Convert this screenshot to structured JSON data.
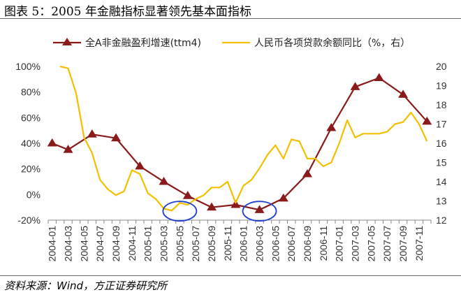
{
  "title": "图表 5：2005 年金融指标显著领先基本面指标",
  "source": "资料来源：Wind，方正证券研究所",
  "chart_data": {
    "type": "line",
    "categories": [
      "2004-01",
      "2004-02",
      "2004-03",
      "2004-04",
      "2004-05",
      "2004-06",
      "2004-07",
      "2004-08",
      "2004-09",
      "2004-10",
      "2004-11",
      "2004-12",
      "2005-01",
      "2005-02",
      "2005-03",
      "2005-04",
      "2005-05",
      "2005-06",
      "2005-07",
      "2005-08",
      "2005-09",
      "2005-10",
      "2005-11",
      "2005-12",
      "2006-01",
      "2006-02",
      "2006-03",
      "2006-04",
      "2006-05",
      "2006-06",
      "2006-07",
      "2006-08",
      "2006-09",
      "2006-10",
      "2006-11",
      "2006-12",
      "2007-01",
      "2007-02",
      "2007-03",
      "2007-04",
      "2007-05",
      "2007-06",
      "2007-07",
      "2007-08",
      "2007-09",
      "2007-10",
      "2007-11",
      "2007-12"
    ],
    "tick_labels": [
      "2004-01",
      "2004-03",
      "2004-05",
      "2004-07",
      "2004-09",
      "2004-11",
      "2005-01",
      "2005-03",
      "2005-05",
      "2005-07",
      "2005-09",
      "2005-11",
      "2006-01",
      "2006-03",
      "2006-05",
      "2006-07",
      "2006-09",
      "2006-11",
      "2007-01",
      "2007-03",
      "2007-05",
      "2007-07",
      "2007-09",
      "2007-11"
    ],
    "y_left": {
      "min": -20,
      "max": 100,
      "step": 20,
      "tick_labels": [
        "100%",
        "80%",
        "60%",
        "40%",
        "20%",
        "0%",
        "-20%"
      ]
    },
    "y_right": {
      "min": 12,
      "max": 20,
      "step": 1,
      "tick_labels": [
        "20",
        "19",
        "18",
        "17",
        "16",
        "15",
        "14",
        "13",
        "12"
      ]
    },
    "series": [
      {
        "name": "全A非金融盈利增速(ttm4)",
        "axis": "left",
        "color": "#8B1A1A",
        "marker": "triangle",
        "points": [
          {
            "x": "2004-01",
            "y": 40
          },
          {
            "x": "2004-03",
            "y": 35
          },
          {
            "x": "2004-06",
            "y": 47
          },
          {
            "x": "2004-09",
            "y": 44
          },
          {
            "x": "2004-12",
            "y": 22
          },
          {
            "x": "2005-03",
            "y": 10
          },
          {
            "x": "2005-06",
            "y": -1
          },
          {
            "x": "2005-09",
            "y": -10
          },
          {
            "x": "2005-12",
            "y": -8
          },
          {
            "x": "2006-03",
            "y": -12
          },
          {
            "x": "2006-06",
            "y": -3
          },
          {
            "x": "2006-09",
            "y": 16
          },
          {
            "x": "2006-12",
            "y": 52
          },
          {
            "x": "2007-03",
            "y": 84
          },
          {
            "x": "2007-06",
            "y": 91
          },
          {
            "x": "2007-09",
            "y": 78
          },
          {
            "x": "2007-12",
            "y": 57
          }
        ]
      },
      {
        "name": "人民币各项贷款余额同比（%，右）",
        "axis": "right",
        "color": "#F2C000",
        "marker": "none",
        "points": [
          {
            "x": "2004-02",
            "y": 20.0
          },
          {
            "x": "2004-03",
            "y": 19.9
          },
          {
            "x": "2004-04",
            "y": 18.6
          },
          {
            "x": "2004-05",
            "y": 16.3
          },
          {
            "x": "2004-06",
            "y": 15.5
          },
          {
            "x": "2004-07",
            "y": 14.1
          },
          {
            "x": "2004-08",
            "y": 13.6
          },
          {
            "x": "2004-09",
            "y": 13.3
          },
          {
            "x": "2004-10",
            "y": 13.5
          },
          {
            "x": "2004-11",
            "y": 14.6
          },
          {
            "x": "2004-12",
            "y": 14.4
          },
          {
            "x": "2005-01",
            "y": 13.4
          },
          {
            "x": "2005-02",
            "y": 13.1
          },
          {
            "x": "2005-03",
            "y": 12.6
          },
          {
            "x": "2005-04",
            "y": 12.5
          },
          {
            "x": "2005-05",
            "y": 12.9
          },
          {
            "x": "2005-06",
            "y": 12.8
          },
          {
            "x": "2005-07",
            "y": 13.1
          },
          {
            "x": "2005-08",
            "y": 13.3
          },
          {
            "x": "2005-09",
            "y": 13.7
          },
          {
            "x": "2005-10",
            "y": 13.7
          },
          {
            "x": "2005-11",
            "y": 14.0
          },
          {
            "x": "2005-12",
            "y": 12.9
          },
          {
            "x": "2006-01",
            "y": 13.8
          },
          {
            "x": "2006-02",
            "y": 14.1
          },
          {
            "x": "2006-03",
            "y": 14.7
          },
          {
            "x": "2006-04",
            "y": 15.4
          },
          {
            "x": "2006-05",
            "y": 15.9
          },
          {
            "x": "2006-06",
            "y": 15.2
          },
          {
            "x": "2006-07",
            "y": 16.2
          },
          {
            "x": "2006-08",
            "y": 16.1
          },
          {
            "x": "2006-09",
            "y": 15.2
          },
          {
            "x": "2006-10",
            "y": 15.2
          },
          {
            "x": "2006-11",
            "y": 14.8
          },
          {
            "x": "2006-12",
            "y": 15.0
          },
          {
            "x": "2007-01",
            "y": 16.0
          },
          {
            "x": "2007-02",
            "y": 17.2
          },
          {
            "x": "2007-03",
            "y": 16.3
          },
          {
            "x": "2007-04",
            "y": 16.5
          },
          {
            "x": "2007-05",
            "y": 16.5
          },
          {
            "x": "2007-06",
            "y": 16.5
          },
          {
            "x": "2007-07",
            "y": 16.6
          },
          {
            "x": "2007-08",
            "y": 17.0
          },
          {
            "x": "2007-09",
            "y": 17.1
          },
          {
            "x": "2007-10",
            "y": 17.6
          },
          {
            "x": "2007-11",
            "y": 17.0
          },
          {
            "x": "2007-12",
            "y": 16.1
          }
        ]
      }
    ],
    "annotations": [
      {
        "shape": "ellipse",
        "color": "#1F3FD0",
        "x": "2005-05",
        "y_left": -13
      },
      {
        "shape": "ellipse",
        "color": "#1F3FD0",
        "x": "2006-03",
        "y_left": -13
      }
    ],
    "legend": "top",
    "grid": false
  }
}
